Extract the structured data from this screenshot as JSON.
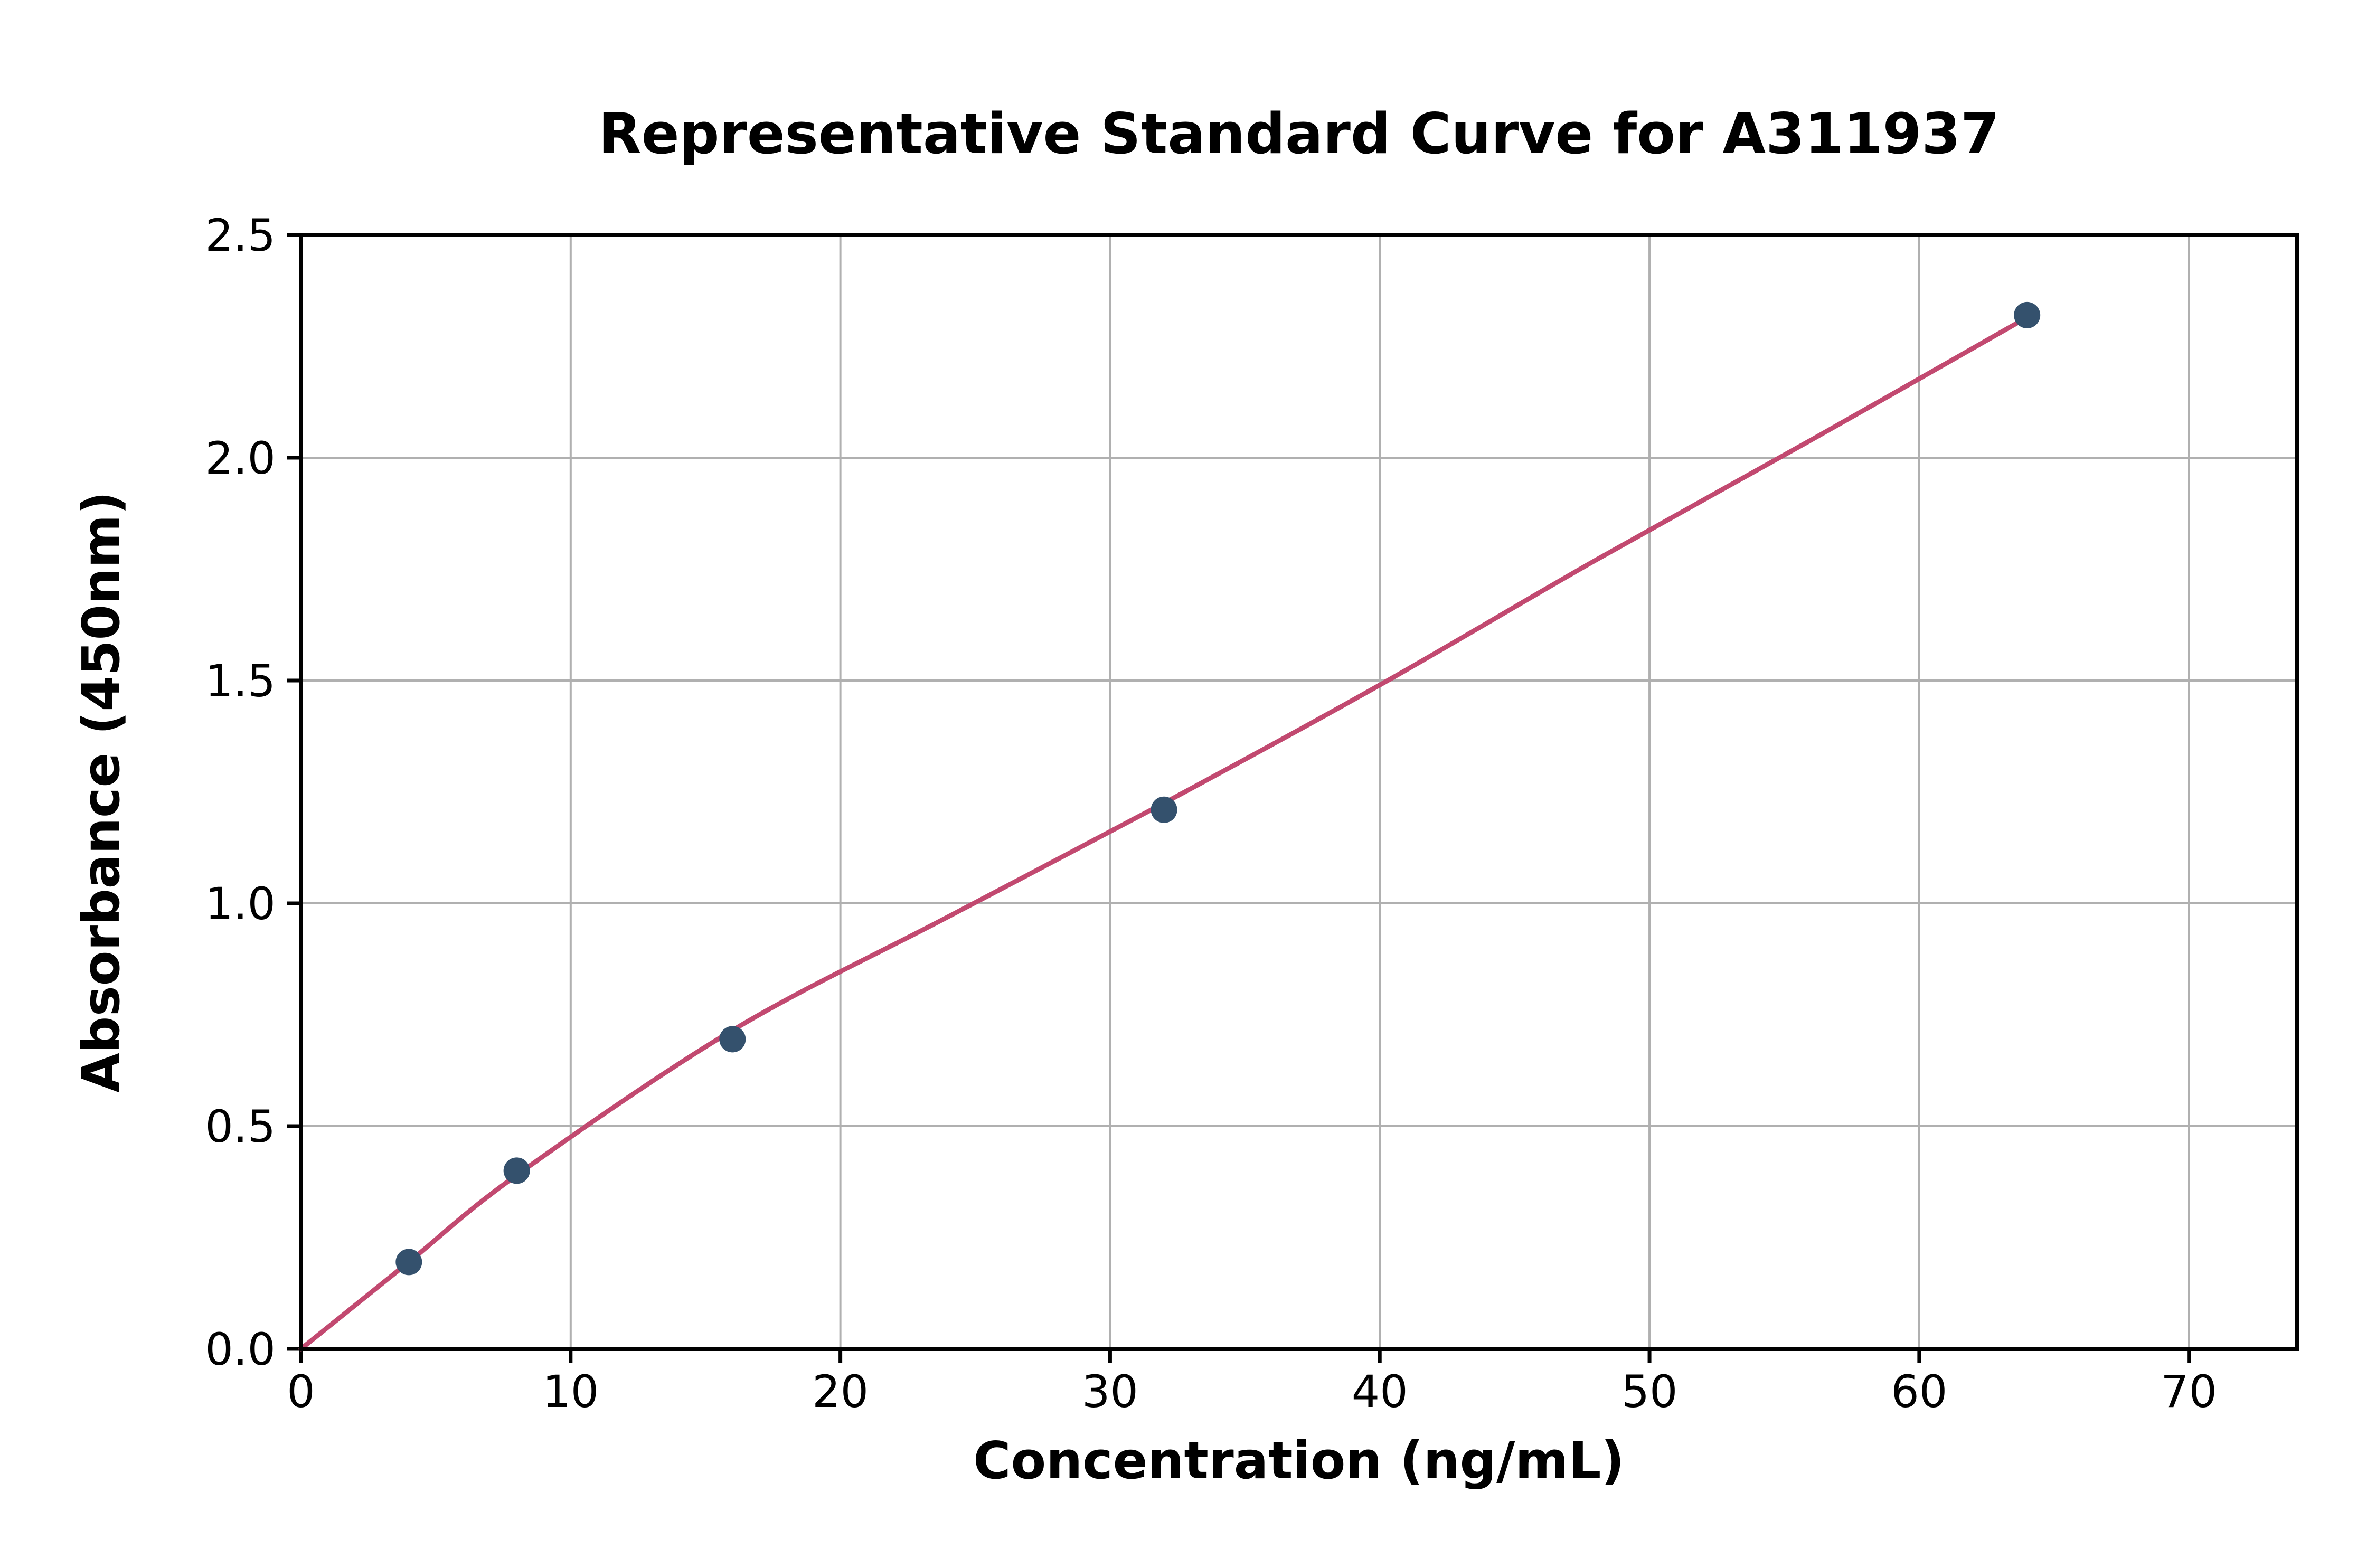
{
  "chart_data": {
    "type": "scatter",
    "title": "Representative Standard Curve for A311937",
    "xlabel": "Concentration (ng/mL)",
    "ylabel": "Absorbance (450nm)",
    "xlim": [
      0,
      74
    ],
    "ylim": [
      0,
      2.5
    ],
    "xticks": [
      0,
      10,
      20,
      30,
      40,
      50,
      60,
      70
    ],
    "xtick_labels": [
      "0",
      "10",
      "20",
      "30",
      "40",
      "50",
      "60",
      "70"
    ],
    "yticks": [
      0.0,
      0.5,
      1.0,
      1.5,
      2.0,
      2.5
    ],
    "ytick_labels": [
      "0.0",
      "0.5",
      "1.0",
      "1.5",
      "2.0",
      "2.5"
    ],
    "grid": true,
    "legend": "none",
    "points": [
      {
        "x": 4,
        "y": 0.195
      },
      {
        "x": 8,
        "y": 0.4
      },
      {
        "x": 16,
        "y": 0.695
      },
      {
        "x": 32,
        "y": 1.21
      },
      {
        "x": 64,
        "y": 2.32
      }
    ],
    "fit_curve": [
      [
        0,
        0.0
      ],
      [
        4,
        0.195
      ],
      [
        8,
        0.39
      ],
      [
        16,
        0.715
      ],
      [
        24,
        0.97
      ],
      [
        32,
        1.225
      ],
      [
        40,
        1.49
      ],
      [
        48,
        1.77
      ],
      [
        56,
        2.04
      ],
      [
        64,
        2.315
      ]
    ],
    "colors": {
      "point": "#34516d",
      "line": "#c24970",
      "grid": "#b0b0b0",
      "spine": "#000000",
      "background": "#ffffff"
    }
  }
}
